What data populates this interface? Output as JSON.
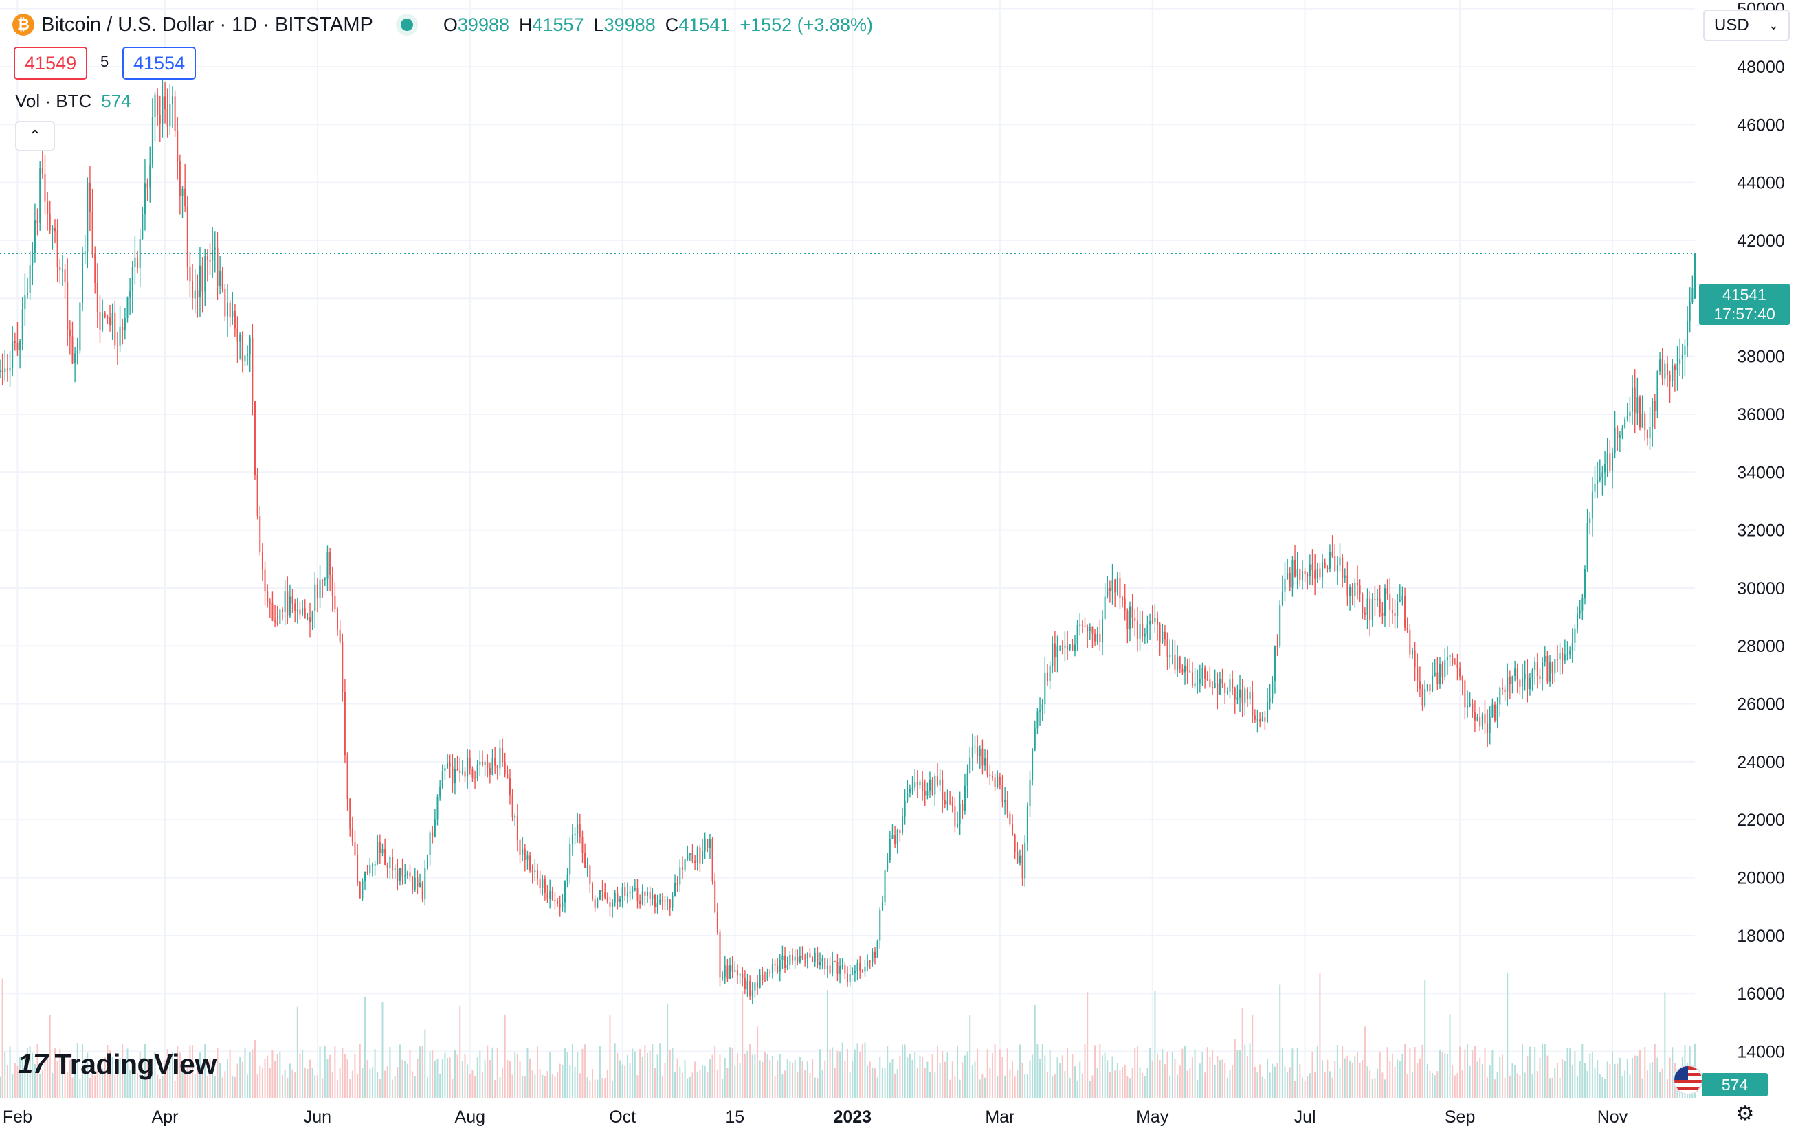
{
  "header": {
    "symbol_title": "Bitcoin / U.S. Dollar · 1D · BITSTAMP",
    "ohlc": [
      {
        "label": "O",
        "value": "39988"
      },
      {
        "label": "H",
        "value": "41557"
      },
      {
        "label": "L",
        "value": "39988"
      },
      {
        "label": "C",
        "value": "41541"
      }
    ],
    "change": "+1552 (+3.88%)",
    "bid": "41549",
    "spread": "5",
    "ask": "41554"
  },
  "volume_legend": {
    "label": "Vol · BTC",
    "value": "574"
  },
  "currency_selector": {
    "value": "USD"
  },
  "last_price_tag": {
    "price": "41541",
    "countdown": "17:57:40"
  },
  "volume_tag": "574",
  "branding": {
    "logo_text": "TradingView"
  },
  "icons": {
    "symbol": "bitcoin-logo-icon",
    "status": "market-open-dot-icon",
    "collapse": "chevron-up-icon",
    "dropdown": "chevron-down-icon",
    "settings": "gear-icon",
    "flag": "us-flag-icon"
  },
  "colors": {
    "up": "#26a69a",
    "down": "#ef5350",
    "grid": "#f0f3fa"
  },
  "chart_data": {
    "type": "candlestick",
    "interval": "1D",
    "y_axis": {
      "ticks": [
        14000,
        16000,
        18000,
        20000,
        22000,
        24000,
        26000,
        28000,
        30000,
        32000,
        34000,
        36000,
        38000,
        40000,
        42000,
        44000,
        46000,
        48000,
        50000
      ],
      "range": [
        12400,
        50300
      ],
      "position": "right"
    },
    "x_axis": {
      "ticks": [
        {
          "label": "Feb",
          "date": "2022-02-01"
        },
        {
          "label": "Apr",
          "date": "2022-04-01"
        },
        {
          "label": "Jun",
          "date": "2022-06-01"
        },
        {
          "label": "Aug",
          "date": "2022-08-01"
        },
        {
          "label": "Oct",
          "date": "2022-10-01"
        },
        {
          "label": "15",
          "date": "2022-11-15"
        },
        {
          "label": "2023",
          "date": "2023-01-01"
        },
        {
          "label": "Mar",
          "date": "2023-03-01"
        },
        {
          "label": "May",
          "date": "2023-05-01"
        },
        {
          "label": "Jul",
          "date": "2023-07-01"
        },
        {
          "label": "Sep",
          "date": "2023-09-01"
        },
        {
          "label": "Nov",
          "date": "2023-11-01"
        }
      ],
      "range": [
        "2022-01-25",
        "2023-12-04"
      ]
    },
    "price_path": [
      [
        "2022-01-25",
        37000
      ],
      [
        "2022-02-04",
        39500
      ],
      [
        "2022-02-10",
        44000
      ],
      [
        "2022-02-19",
        41000
      ],
      [
        "2022-02-24",
        37500
      ],
      [
        "2022-03-01",
        43500
      ],
      [
        "2022-03-06",
        39000
      ],
      [
        "2022-03-14",
        38800
      ],
      [
        "2022-03-22",
        42000
      ],
      [
        "2022-03-28",
        47000
      ],
      [
        "2022-04-04",
        46500
      ],
      [
        "2022-04-12",
        40000
      ],
      [
        "2022-04-20",
        41500
      ],
      [
        "2022-04-28",
        39000
      ],
      [
        "2022-05-05",
        38000
      ],
      [
        "2022-05-09",
        31000
      ],
      [
        "2022-05-12",
        29000
      ],
      [
        "2022-05-20",
        29500
      ],
      [
        "2022-05-28",
        29000
      ],
      [
        "2022-06-05",
        31000
      ],
      [
        "2022-06-10",
        28500
      ],
      [
        "2022-06-13",
        22500
      ],
      [
        "2022-06-18",
        19500
      ],
      [
        "2022-06-25",
        21000
      ],
      [
        "2022-07-05",
        20000
      ],
      [
        "2022-07-13",
        19500
      ],
      [
        "2022-07-20",
        23500
      ],
      [
        "2022-07-30",
        23800
      ],
      [
        "2022-08-10",
        23800
      ],
      [
        "2022-08-14",
        24200
      ],
      [
        "2022-08-20",
        21300
      ],
      [
        "2022-08-28",
        20000
      ],
      [
        "2022-09-06",
        19000
      ],
      [
        "2022-09-12",
        21800
      ],
      [
        "2022-09-20",
        19200
      ],
      [
        "2022-10-01",
        19400
      ],
      [
        "2022-10-10",
        19300
      ],
      [
        "2022-10-20",
        19100
      ],
      [
        "2022-10-26",
        20500
      ],
      [
        "2022-11-05",
        21100
      ],
      [
        "2022-11-09",
        16800
      ],
      [
        "2022-11-15",
        16700
      ],
      [
        "2022-11-22",
        16100
      ],
      [
        "2022-12-01",
        17000
      ],
      [
        "2022-12-15",
        17400
      ],
      [
        "2022-12-25",
        16800
      ],
      [
        "2023-01-01",
        16600
      ],
      [
        "2023-01-10",
        17400
      ],
      [
        "2023-01-15",
        20800
      ],
      [
        "2023-01-25",
        23000
      ],
      [
        "2023-02-05",
        23200
      ],
      [
        "2023-02-12",
        21800
      ],
      [
        "2023-02-18",
        24500
      ],
      [
        "2023-02-28",
        23300
      ],
      [
        "2023-03-10",
        20200
      ],
      [
        "2023-03-14",
        24600
      ],
      [
        "2023-03-22",
        28000
      ],
      [
        "2023-04-01",
        28400
      ],
      [
        "2023-04-10",
        28300
      ],
      [
        "2023-04-14",
        30400
      ],
      [
        "2023-04-25",
        28300
      ],
      [
        "2023-05-01",
        29200
      ],
      [
        "2023-05-08",
        27700
      ],
      [
        "2023-05-20",
        26800
      ],
      [
        "2023-06-05",
        26500
      ],
      [
        "2023-06-15",
        25200
      ],
      [
        "2023-06-20",
        28300
      ],
      [
        "2023-06-23",
        30500
      ],
      [
        "2023-07-05",
        30500
      ],
      [
        "2023-07-13",
        31000
      ],
      [
        "2023-07-24",
        29300
      ],
      [
        "2023-08-08",
        29600
      ],
      [
        "2023-08-17",
        26400
      ],
      [
        "2023-08-29",
        27600
      ],
      [
        "2023-09-05",
        25800
      ],
      [
        "2023-09-12",
        25200
      ],
      [
        "2023-09-20",
        26900
      ],
      [
        "2023-10-01",
        27000
      ],
      [
        "2023-10-10",
        27400
      ],
      [
        "2023-10-17",
        28500
      ],
      [
        "2023-10-20",
        29900
      ],
      [
        "2023-10-24",
        33800
      ],
      [
        "2023-10-31",
        34600
      ],
      [
        "2023-11-09",
        36600
      ],
      [
        "2023-11-15",
        35600
      ],
      [
        "2023-11-20",
        37400
      ],
      [
        "2023-11-28",
        37800
      ],
      [
        "2023-12-01",
        38700
      ],
      [
        "2023-12-04",
        41541
      ]
    ],
    "last_price": 41541,
    "last_bar": {
      "open": 39988,
      "high": 41557,
      "low": 39988,
      "close": 41541
    },
    "volume_series": {
      "name": "Vol · BTC",
      "last": 574
    },
    "grid": true
  }
}
